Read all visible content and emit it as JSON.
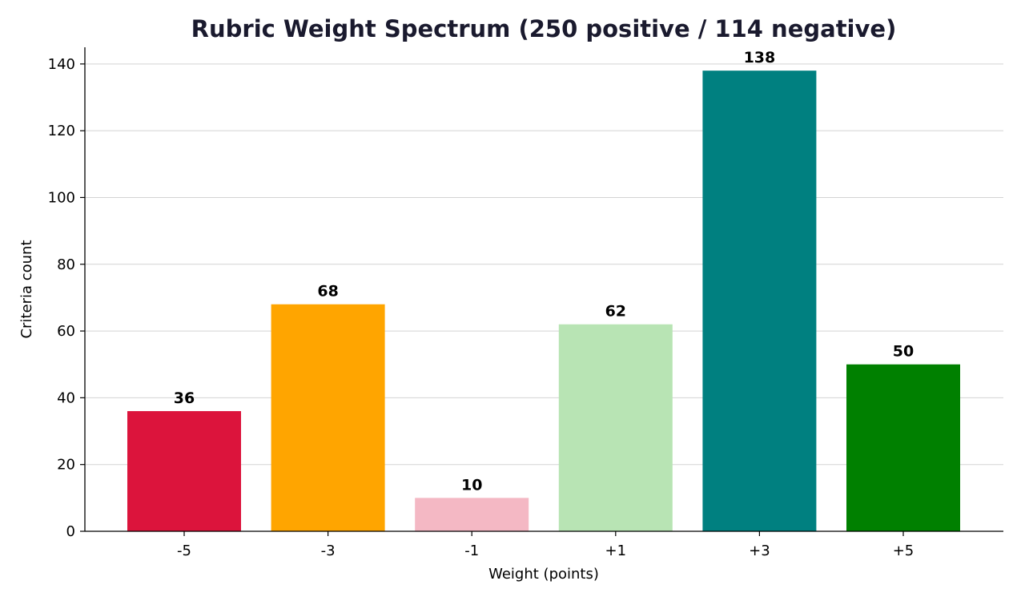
{
  "chart_data": {
    "type": "bar",
    "title": "Rubric Weight Spectrum  (250 positive / 114 negative)",
    "xlabel": "Weight (points)",
    "ylabel": "Criteria count",
    "categories": [
      "-5",
      "-3",
      "-1",
      "+1",
      "+3",
      "+5"
    ],
    "values": [
      36,
      68,
      10,
      62,
      138,
      50
    ],
    "colors": [
      "#dc143c",
      "#ffa500",
      "#f4b8c4",
      "#b8e4b4",
      "#008080",
      "#008000"
    ],
    "ylim": [
      0,
      145
    ],
    "yticks": [
      0,
      20,
      40,
      60,
      80,
      100,
      120,
      140
    ],
    "grid": true,
    "grid_axis": "y",
    "legend": "none"
  }
}
